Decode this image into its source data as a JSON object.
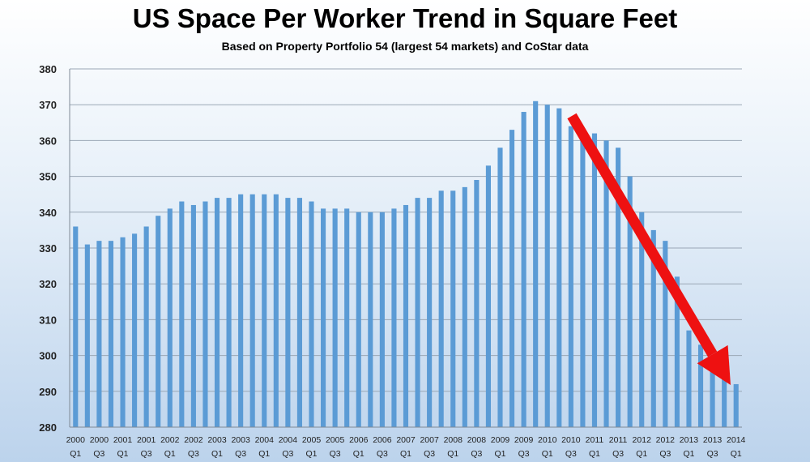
{
  "chart_data": {
    "type": "bar",
    "title": "US Space Per Worker Trend in Square Feet",
    "subtitle": "Based on Property Portfolio 54 (largest 54 markets) and CoStar data",
    "xlabel": "",
    "ylabel": "",
    "ylim": [
      280,
      380
    ],
    "yticks": [
      280,
      290,
      300,
      310,
      320,
      330,
      340,
      350,
      360,
      370,
      380
    ],
    "grid": true,
    "categories": [
      "2000 Q1",
      "2000 Q2",
      "2000 Q3",
      "2000 Q4",
      "2001 Q1",
      "2001 Q2",
      "2001 Q3",
      "2001 Q4",
      "2002 Q1",
      "2002 Q2",
      "2002 Q3",
      "2002 Q4",
      "2003 Q1",
      "2003 Q2",
      "2003 Q3",
      "2003 Q4",
      "2004 Q1",
      "2004 Q2",
      "2004 Q3",
      "2004 Q4",
      "2005 Q1",
      "2005 Q2",
      "2005 Q3",
      "2005 Q4",
      "2006 Q1",
      "2006 Q2",
      "2006 Q3",
      "2006 Q4",
      "2007 Q1",
      "2007 Q2",
      "2007 Q3",
      "2007 Q4",
      "2008 Q1",
      "2008 Q2",
      "2008 Q3",
      "2008 Q4",
      "2009 Q1",
      "2009 Q2",
      "2009 Q3",
      "2009 Q4",
      "2010 Q1",
      "2010 Q2",
      "2010 Q3",
      "2010 Q4",
      "2011 Q1",
      "2011 Q2",
      "2011 Q3",
      "2011 Q4",
      "2012 Q1",
      "2012 Q2",
      "2012 Q3",
      "2012 Q4",
      "2013 Q1",
      "2013 Q2",
      "2013 Q3",
      "2013 Q4",
      "2014 Q1"
    ],
    "tick_labels": [
      {
        "year": "2000",
        "quarter": "Q1"
      },
      {
        "year": "2000",
        "quarter": "Q3"
      },
      {
        "year": "2001",
        "quarter": "Q1"
      },
      {
        "year": "2001",
        "quarter": "Q3"
      },
      {
        "year": "2002",
        "quarter": "Q1"
      },
      {
        "year": "2002",
        "quarter": "Q3"
      },
      {
        "year": "2003",
        "quarter": "Q1"
      },
      {
        "year": "2003",
        "quarter": "Q3"
      },
      {
        "year": "2004",
        "quarter": "Q1"
      },
      {
        "year": "2004",
        "quarter": "Q3"
      },
      {
        "year": "2005",
        "quarter": "Q1"
      },
      {
        "year": "2005",
        "quarter": "Q3"
      },
      {
        "year": "2006",
        "quarter": "Q1"
      },
      {
        "year": "2006",
        "quarter": "Q3"
      },
      {
        "year": "2007",
        "quarter": "Q1"
      },
      {
        "year": "2007",
        "quarter": "Q3"
      },
      {
        "year": "2008",
        "quarter": "Q1"
      },
      {
        "year": "2008",
        "quarter": "Q3"
      },
      {
        "year": "2009",
        "quarter": "Q1"
      },
      {
        "year": "2009",
        "quarter": "Q3"
      },
      {
        "year": "2010",
        "quarter": "Q1"
      },
      {
        "year": "2010",
        "quarter": "Q3"
      },
      {
        "year": "2011",
        "quarter": "Q1"
      },
      {
        "year": "2011",
        "quarter": "Q3"
      },
      {
        "year": "2012",
        "quarter": "Q1"
      },
      {
        "year": "2012",
        "quarter": "Q3"
      },
      {
        "year": "2013",
        "quarter": "Q1"
      },
      {
        "year": "2013",
        "quarter": "Q3"
      },
      {
        "year": "2014",
        "quarter": "Q1"
      }
    ],
    "values": [
      336,
      331,
      332,
      332,
      333,
      334,
      336,
      339,
      341,
      343,
      342,
      343,
      344,
      344,
      345,
      345,
      345,
      345,
      344,
      344,
      343,
      341,
      341,
      341,
      340,
      340,
      340,
      341,
      342,
      344,
      344,
      346,
      346,
      347,
      349,
      353,
      358,
      363,
      368,
      371,
      370,
      369,
      364,
      361,
      362,
      360,
      358,
      350,
      340,
      335,
      332,
      322,
      307,
      303,
      299,
      295,
      292
    ],
    "annotation": "downward trend arrow from 2010 Q3 to 2014 Q1"
  },
  "colors": {
    "bar": "#5b9bd5",
    "arrow": "#ee1111",
    "grid": "#9aa7b5",
    "axis": "#7f8a96"
  }
}
